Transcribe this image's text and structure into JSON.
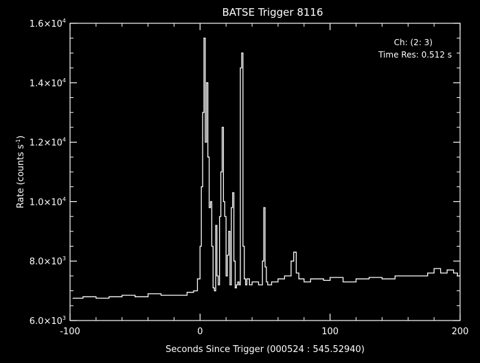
{
  "chart_data": {
    "type": "line",
    "title": "BATSE Trigger 8116",
    "xlabel": "Seconds Since Trigger (000524 : 545.52940)",
    "ylabel": "Rate (counts s",
    "ylabel_sup": "-1",
    "ylabel_close": ")",
    "xlim": [
      -100,
      200
    ],
    "ylim": [
      6000,
      16000
    ],
    "x_ticks": [
      -100,
      0,
      100,
      200
    ],
    "x_tick_labels": [
      "-100",
      "0",
      "100",
      "200"
    ],
    "y_ticks": [
      {
        "value": 6000,
        "mant": "6.0×10",
        "exp": "3"
      },
      {
        "value": 8000,
        "mant": "8.0×10",
        "exp": "3"
      },
      {
        "value": 10000,
        "mant": "1.0×10",
        "exp": "4"
      },
      {
        "value": 12000,
        "mant": "1.2×10",
        "exp": "4"
      },
      {
        "value": 14000,
        "mant": "1.4×10",
        "exp": "4"
      },
      {
        "value": 16000,
        "mant": "1.6×10",
        "exp": "4"
      }
    ],
    "annotations": [
      "Ch: (2: 3)",
      "Time Res: 0.512 s"
    ],
    "grid": false,
    "line_color": "#ffffff",
    "background": "#000000",
    "series": [
      {
        "x": [
          -98,
          -90,
          -80,
          -70,
          -60,
          -50,
          -40,
          -30,
          -20,
          -10,
          -5,
          -2,
          0,
          1,
          2,
          3,
          4,
          5,
          6,
          7,
          8,
          9,
          10,
          11,
          12,
          13,
          14,
          15,
          16,
          17,
          18,
          19,
          20,
          21,
          22,
          23,
          24,
          25,
          26,
          27,
          28,
          29,
          30,
          31,
          32,
          33,
          34,
          35,
          36,
          38,
          40,
          45,
          48,
          49,
          50,
          51,
          52,
          55,
          60,
          65,
          70,
          72,
          74,
          76,
          80,
          85,
          90,
          95,
          100,
          110,
          120,
          130,
          140,
          150,
          160,
          170,
          175,
          180,
          185,
          190,
          195,
          198
        ],
        "y": [
          6750,
          6800,
          6750,
          6800,
          6850,
          6800,
          6900,
          6850,
          6850,
          6950,
          7000,
          7400,
          8500,
          10500,
          13000,
          15500,
          12000,
          14000,
          11500,
          9800,
          10000,
          8500,
          7100,
          7000,
          9200,
          7500,
          7200,
          9500,
          11000,
          12500,
          10000,
          9500,
          7500,
          8200,
          9000,
          7200,
          9800,
          10300,
          8000,
          7100,
          7200,
          7300,
          7200,
          14500,
          15000,
          8500,
          7400,
          7200,
          7400,
          7200,
          7300,
          7200,
          8000,
          9800,
          7800,
          7300,
          7200,
          7300,
          7400,
          7500,
          8000,
          8300,
          7600,
          7400,
          7300,
          7400,
          7400,
          7350,
          7450,
          7300,
          7400,
          7450,
          7400,
          7500,
          7500,
          7500,
          7600,
          7750,
          7600,
          7700,
          7600,
          7500
        ]
      }
    ]
  }
}
